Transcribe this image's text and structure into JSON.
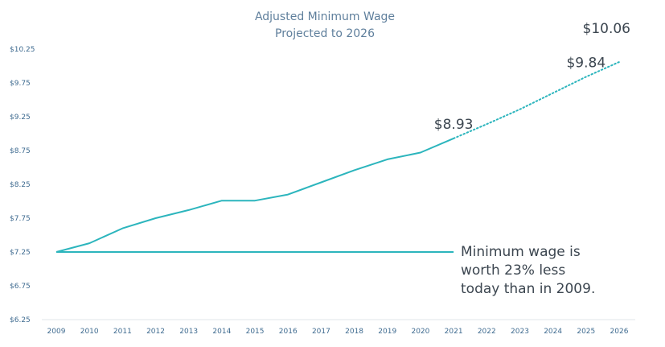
{
  "chart_data": {
    "type": "line",
    "title": "Adjusted Minimum Wage",
    "subtitle": "Projected to 2026",
    "xlabel": "",
    "ylabel": "",
    "categories": [
      "2009",
      "2010",
      "2011",
      "2012",
      "2013",
      "2014",
      "2015",
      "2016",
      "2017",
      "2018",
      "2019",
      "2020",
      "2021",
      "2022",
      "2023",
      "2024",
      "2025",
      "2026"
    ],
    "y_ticks": [
      "$6.25",
      "$6.75",
      "$7.25",
      "$7.75",
      "$8.25",
      "$8.75",
      "$9.25",
      "$9.75",
      "$10.25"
    ],
    "ylim": [
      6.25,
      10.25
    ],
    "grid": false,
    "series": [
      {
        "style": "solid",
        "color": "#2cb5bd",
        "x": [
          "2009",
          "2010",
          "2011",
          "2012",
          "2013",
          "2014",
          "2015",
          "2016",
          "2017",
          "2018",
          "2019",
          "2020",
          "2021"
        ],
        "values": [
          7.25,
          7.38,
          7.6,
          7.75,
          7.87,
          8.01,
          8.01,
          8.1,
          8.28,
          8.46,
          8.62,
          8.72,
          8.93
        ]
      },
      {
        "style": "dotted",
        "color": "#2cb5bd",
        "x": [
          "2021",
          "2022",
          "2023",
          "2024",
          "2025",
          "2026"
        ],
        "values": [
          8.93,
          9.14,
          9.36,
          9.6,
          9.84,
          10.06
        ]
      },
      {
        "style": "solid",
        "color": "#2cb5bd",
        "x": [
          "2009",
          "2021"
        ],
        "values": [
          7.25,
          7.25
        ]
      }
    ],
    "annotations": [
      {
        "text": "$8.93",
        "x": "2021",
        "y": 8.93
      },
      {
        "text": "$9.84",
        "x": "2025",
        "y": 9.84
      },
      {
        "text": "$10.06",
        "x": "2026",
        "y": 10.06
      }
    ],
    "note_lines": [
      "Minimum wage is",
      "worth 23% less",
      "today than in 2009."
    ]
  }
}
